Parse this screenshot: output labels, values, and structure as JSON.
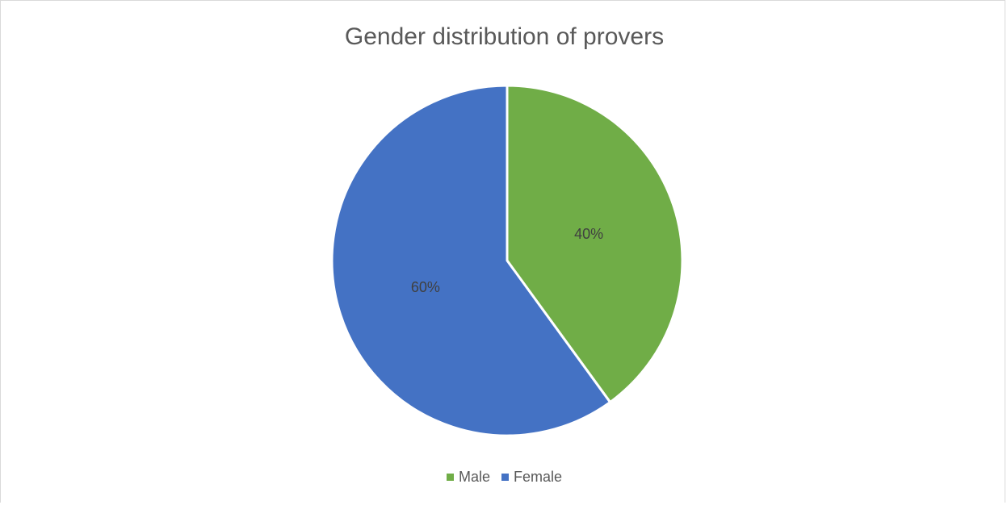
{
  "chart_data": {
    "type": "pie",
    "title": "Gender distribution of provers",
    "categories": [
      "Male",
      "Female"
    ],
    "values": [
      40,
      60
    ],
    "data_labels": [
      "40%",
      "60%"
    ],
    "colors": [
      "#70ad47",
      "#4472c4"
    ],
    "legend_position": "bottom"
  }
}
